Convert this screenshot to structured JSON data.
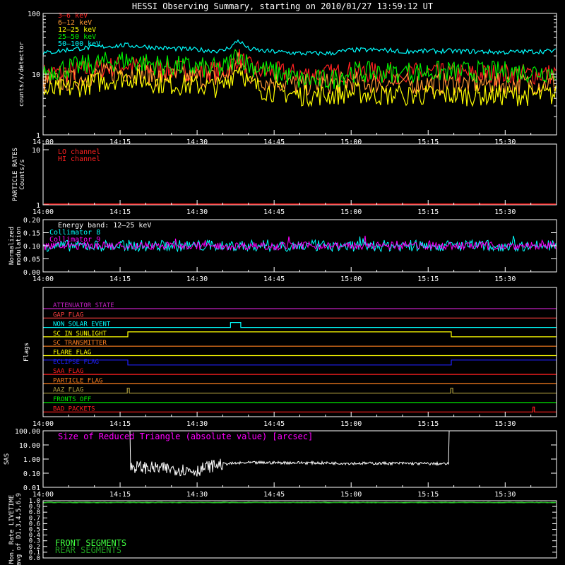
{
  "title": "HESSI Observing Summary, starting on 2010/01/27 13:59:12 UT",
  "time_ticks": [
    "14:00",
    "14:15",
    "14:30",
    "14:45",
    "15:00",
    "15:15",
    "15:30"
  ],
  "chart_data": [
    {
      "type": "line",
      "panel": "count-rates",
      "ylabel": "counts/s/detector",
      "yscale": "log",
      "ylim": [
        1,
        100
      ],
      "y_ticks": [
        "1",
        "10",
        "100"
      ],
      "xlim_minutes": [
        0,
        100
      ],
      "series": [
        {
          "name": "3–6 keV",
          "color": "#ff2020",
          "x": [
            0,
            6,
            13,
            16,
            23,
            35,
            37,
            38,
            40,
            43,
            50,
            56,
            60,
            65,
            70,
            80,
            90,
            99
          ],
          "y": [
            10,
            11,
            13,
            14,
            12,
            11,
            15,
            19,
            13,
            11,
            10,
            10,
            11,
            10.5,
            10.5,
            10,
            10,
            10
          ]
        },
        {
          "name": "6–12 keV",
          "color": "#ff9933",
          "x": [
            0,
            6,
            13,
            16,
            23,
            35,
            37,
            38,
            40,
            43,
            50,
            56,
            60,
            65,
            70,
            80,
            90,
            99
          ],
          "y": [
            7,
            8,
            10.5,
            11,
            9,
            8.5,
            12,
            16,
            10,
            8,
            6.5,
            7,
            7.5,
            7,
            7,
            7,
            7,
            7
          ]
        },
        {
          "name": "12–25 keV",
          "color": "#ffff00",
          "x": [
            0,
            6,
            13,
            16,
            23,
            35,
            37,
            38,
            40,
            43,
            50,
            56,
            60,
            65,
            70,
            80,
            90,
            99
          ],
          "y": [
            5,
            6,
            8,
            9,
            7,
            6,
            10,
            14,
            7,
            5.5,
            4.5,
            4.5,
            5,
            4.5,
            4.5,
            4.5,
            4.5,
            4.5
          ]
        },
        {
          "name": "25–50 keV",
          "color": "#00ee00",
          "x": [
            0,
            6,
            13,
            16,
            23,
            35,
            37,
            38,
            40,
            43,
            50,
            56,
            60,
            65,
            70,
            80,
            90,
            99
          ],
          "y": [
            11,
            13,
            16,
            17,
            14,
            12,
            17,
            22,
            14,
            12,
            8,
            8,
            11,
            10.5,
            11,
            11,
            11,
            11
          ]
        },
        {
          "name": "50–100 keV",
          "color": "#00ffff",
          "x": [
            0,
            6,
            13,
            16,
            23,
            35,
            37,
            38,
            40,
            43,
            50,
            56,
            60,
            65,
            70,
            80,
            90,
            99
          ],
          "y": [
            22,
            26,
            29,
            30,
            27,
            24,
            30,
            36,
            26,
            24,
            22,
            22,
            25,
            25,
            24,
            24,
            23,
            24
          ]
        }
      ]
    },
    {
      "type": "line",
      "panel": "particle-rates",
      "ylabel": "PARTICLE RATES\nCounts/s",
      "y_ticks": [
        "1",
        "10"
      ],
      "series": [
        {
          "name": "LO channel",
          "color": "#ff2020",
          "x": [
            0,
            100
          ],
          "y": [
            1,
            1
          ]
        },
        {
          "name": "HI channel",
          "color": "#ff2020",
          "x": [
            0,
            100
          ],
          "y": [
            1,
            1
          ]
        }
      ]
    },
    {
      "type": "line",
      "panel": "modulation",
      "ylabel": "Normalized\nmodulation",
      "ylim": [
        0,
        0.2
      ],
      "y_ticks": [
        "0.00",
        "0.05",
        "0.10",
        "0.15",
        "0.20"
      ],
      "annotation": "Energy band: 12–25 keV",
      "series": [
        {
          "name": "Collimator 8",
          "color": "#00ffff",
          "mean": 0.1
        },
        {
          "name": "Collimator 9",
          "color": "#ff00ff",
          "mean": 0.1
        }
      ]
    },
    {
      "type": "line",
      "panel": "flags",
      "ylabel": "Flags",
      "series": [
        {
          "name": "ATTENUATOR STATE",
          "color": "#c020c0",
          "x": [
            0,
            100
          ],
          "y": [
            0,
            0
          ]
        },
        {
          "name": "GAP FLAG",
          "color": "#ff4040",
          "x": [
            0,
            100
          ],
          "y": [
            0,
            0
          ]
        },
        {
          "name": "NON SOLAR EVENT",
          "color": "#00ffff",
          "x": [
            0,
            36.5,
            36.5,
            38.5,
            38.5,
            100
          ],
          "y": [
            0,
            0,
            1,
            1,
            0,
            0
          ]
        },
        {
          "name": "SC IN SUNLIGHT",
          "color": "#ffff00",
          "x": [
            0,
            16.5,
            16.5,
            79.5,
            79.5,
            100
          ],
          "y": [
            0,
            0,
            1,
            1,
            0,
            0
          ]
        },
        {
          "name": "SC TRANSMITTER",
          "color": "#ff8020",
          "x": [
            0,
            100
          ],
          "y": [
            0,
            0
          ]
        },
        {
          "name": "FLARE FLAG",
          "color": "#ffff00",
          "x": [
            0,
            100
          ],
          "y": [
            0,
            0
          ]
        },
        {
          "name": "ECLIPSE FLAG",
          "color": "#2020ff",
          "x": [
            0,
            16.5,
            16.5,
            79.5,
            79.5,
            100
          ],
          "y": [
            1,
            1,
            0,
            0,
            1,
            1
          ]
        },
        {
          "name": "SAA FLAG",
          "color": "#ff2020",
          "x": [
            0,
            100
          ],
          "y": [
            0,
            0
          ]
        },
        {
          "name": "PARTICLE FLAG",
          "color": "#ff8020",
          "x": [
            0,
            100
          ],
          "y": [
            0,
            0
          ]
        },
        {
          "name": "AAZ FLAG",
          "color": "#b0a040",
          "x": [
            0,
            16.4,
            16.4,
            16.8,
            16.8,
            79.4,
            79.4,
            79.8,
            79.8,
            100
          ],
          "y": [
            0,
            0,
            1,
            1,
            0,
            0,
            1,
            1,
            0,
            0
          ]
        },
        {
          "name": "FRONTS OFF",
          "color": "#00ee00",
          "x": [
            0,
            100
          ],
          "y": [
            0,
            0
          ]
        },
        {
          "name": "BAD PACKETS",
          "color": "#ff2020",
          "x": [
            0,
            95.4,
            95.4,
            95.7,
            95.7,
            100
          ],
          "y": [
            0,
            0,
            1,
            1,
            0,
            0
          ]
        }
      ]
    },
    {
      "type": "line",
      "panel": "sas",
      "ylabel": "SAS",
      "yscale": "log",
      "ylim": [
        0.01,
        100
      ],
      "y_ticks": [
        "0.01",
        "0.10",
        "1.00",
        "10.00",
        "100.00"
      ],
      "annotation": "Size of Reduced Triangle (absolute value) [arcsec]",
      "series": [
        {
          "name": "SAS triangle",
          "color": "#ffffff",
          "x": [
            16.2,
            16.5,
            20,
            25,
            30,
            35,
            40,
            50,
            60,
            70,
            79.3
          ],
          "y": [
            100,
            0.3,
            0.25,
            0.2,
            0.15,
            0.45,
            0.55,
            0.55,
            0.5,
            0.5,
            0.45
          ]
        }
      ]
    },
    {
      "type": "line",
      "panel": "livetime",
      "ylabel": "Mon. Rate LIVETIME\navg of D1,3,4,5,6,9",
      "ylim": [
        0,
        1
      ],
      "y_ticks": [
        "0.0",
        "0.1",
        "0.2",
        "0.3",
        "0.4",
        "0.5",
        "0.6",
        "0.7",
        "0.8",
        "0.9",
        "1.0"
      ],
      "series": [
        {
          "name": "FRONT SEGMENTS",
          "color": "#40ff40",
          "x": [
            0,
            100
          ],
          "y": [
            0.97,
            0.97
          ]
        },
        {
          "name": "REAR SEGMENTS",
          "color": "#20a020",
          "x": [
            0,
            100
          ],
          "y": [
            0.97,
            0.97
          ]
        }
      ]
    }
  ]
}
